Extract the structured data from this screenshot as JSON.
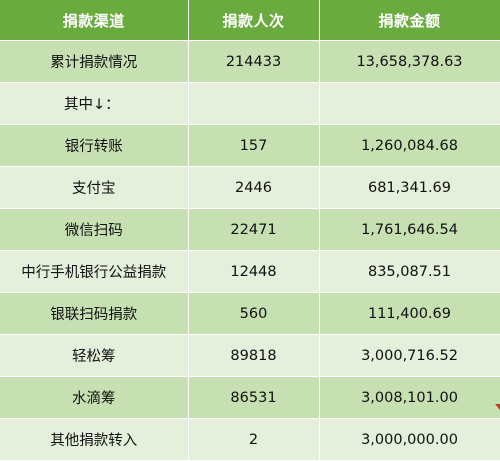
{
  "header": {
    "channel": "捐款渠道",
    "count": "捐款人次",
    "amount": "捐款金额"
  },
  "rows": [
    {
      "channel": "累计捐款情况",
      "count": "214433",
      "amount": "13,658,378.63"
    },
    {
      "channel": "其中↓：",
      "count": "",
      "amount": ""
    },
    {
      "channel": "银行转账",
      "count": "157",
      "amount": "1,260,084.68"
    },
    {
      "channel": "支付宝",
      "count": "2446",
      "amount": "681,341.69"
    },
    {
      "channel": "微信扫码",
      "count": "22471",
      "amount": "1,761,646.54"
    },
    {
      "channel": "中行手机银行公益捐款",
      "count": "12448",
      "amount": "835,087.51"
    },
    {
      "channel": "银联扫码捐款",
      "count": "560",
      "amount": "111,400.69"
    },
    {
      "channel": "轻松筹",
      "count": "89818",
      "amount": "3,000,716.52"
    },
    {
      "channel": "水滴筹",
      "count": "86531",
      "amount": "3,008,101.00"
    },
    {
      "channel": "其他捐款转入",
      "count": "2",
      "amount": "3,000,000.00"
    }
  ],
  "colors": {
    "header_bg": "#6aab3f",
    "row_dark": "#c6e0b2",
    "row_light": "#e4efdc"
  }
}
